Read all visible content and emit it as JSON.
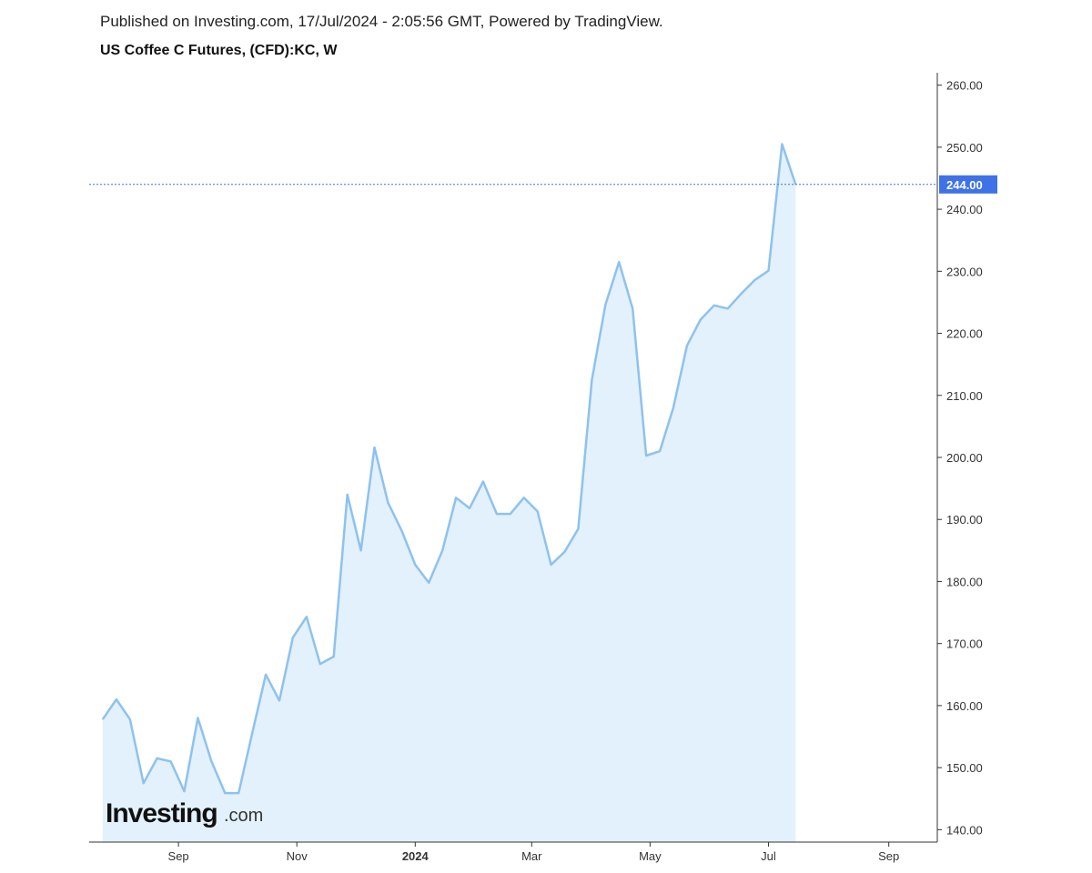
{
  "header": {
    "published": "Published on Investing.com, 17/Jul/2024 - 2:05:56 GMT, Powered by TradingView.",
    "title": "US Coffee C Futures, (CFD):KC, W"
  },
  "logo": {
    "main": "Investing",
    "sub": ".com"
  },
  "colors": {
    "line": "#8ec2ee",
    "fill": "#e2f1fb",
    "last_price": "#3f72e6",
    "axis": "#333333"
  },
  "chart_data": {
    "type": "area",
    "title": "US Coffee C Futures, (CFD):KC, W",
    "xlabel": "",
    "ylabel": "",
    "ylim": [
      138,
      262
    ],
    "y_ticks": [
      "140.00",
      "150.00",
      "160.00",
      "170.00",
      "180.00",
      "190.00",
      "200.00",
      "210.00",
      "220.00",
      "230.00",
      "240.00",
      "250.00",
      "260.00"
    ],
    "x_ticks": [
      {
        "label": "Sep",
        "date": "2023-09-01",
        "bold": false
      },
      {
        "label": "Nov",
        "date": "2023-11-01",
        "bold": false
      },
      {
        "label": "2024",
        "date": "2024-01-01",
        "bold": true
      },
      {
        "label": "Mar",
        "date": "2024-03-01",
        "bold": false
      },
      {
        "label": "May",
        "date": "2024-05-01",
        "bold": false
      },
      {
        "label": "Jul",
        "date": "2024-07-01",
        "bold": false
      },
      {
        "label": "Sep",
        "date": "2024-09-01",
        "bold": false
      }
    ],
    "x_range": [
      "2023-07-17",
      "2024-09-26"
    ],
    "last_price": {
      "value": 244.0,
      "label": "244.00"
    },
    "series": [
      {
        "x": [
          "2023-07-24",
          "2023-07-31",
          "2023-08-07",
          "2023-08-14",
          "2023-08-21",
          "2023-08-28",
          "2023-09-04",
          "2023-09-11",
          "2023-09-18",
          "2023-09-25",
          "2023-10-02",
          "2023-10-09",
          "2023-10-16",
          "2023-10-23",
          "2023-10-30",
          "2023-11-06",
          "2023-11-13",
          "2023-11-20",
          "2023-11-27",
          "2023-12-04",
          "2023-12-11",
          "2023-12-18",
          "2023-12-25",
          "2024-01-01",
          "2024-01-08",
          "2024-01-15",
          "2024-01-22",
          "2024-01-29",
          "2024-02-05",
          "2024-02-12",
          "2024-02-19",
          "2024-02-26",
          "2024-03-04",
          "2024-03-11",
          "2024-03-18",
          "2024-03-25",
          "2024-04-01",
          "2024-04-08",
          "2024-04-15",
          "2024-04-22",
          "2024-04-29",
          "2024-05-06",
          "2024-05-13",
          "2024-05-20",
          "2024-05-27",
          "2024-06-03",
          "2024-06-10",
          "2024-06-17",
          "2024-06-24",
          "2024-07-01",
          "2024-07-08",
          "2024-07-15"
        ],
        "values": [
          157.8,
          161.0,
          157.8,
          147.5,
          151.5,
          151.0,
          146.2,
          158.0,
          151.0,
          145.9,
          145.9,
          155.5,
          165.0,
          160.8,
          171.0,
          174.3,
          166.7,
          167.9,
          194.0,
          185.0,
          201.6,
          192.7,
          188.2,
          182.7,
          179.8,
          185.0,
          193.5,
          191.8,
          196.1,
          190.9,
          190.9,
          193.5,
          191.3,
          182.7,
          184.8,
          188.5,
          212.5,
          224.6,
          231.5,
          224.0,
          200.3,
          201.0,
          208.0,
          218.0,
          222.2,
          224.5,
          224.0,
          226.4,
          228.6,
          230.1,
          250.5,
          244.0
        ]
      }
    ],
    "grid": false,
    "legend": "none"
  }
}
